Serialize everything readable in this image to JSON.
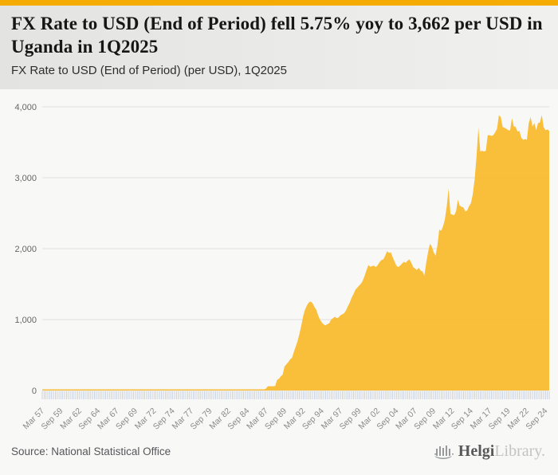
{
  "header": {
    "title": "FX Rate to USD (End of Period) fell 5.75% yoy to 3,662 per USD in Uganda in 1Q2025",
    "subtitle": "FX Rate to USD (End of Period) (per USD), 1Q2025"
  },
  "footer": {
    "source": "Source: National Statistical Office",
    "logo": {
      "primary": "Helgi",
      "secondary": "Library."
    }
  },
  "icons": {
    "logo_mark": "helgi-columns-icon"
  },
  "colors": {
    "accent_bar": "#F5AB00",
    "area_fill": "#F9BC34",
    "grid_line": "#E0E0DD",
    "tick_mark": "#BFC9DA",
    "x_label": "#8A8A8A",
    "y_label": "#666666",
    "logo_gray": "#97999C"
  },
  "chart_data": {
    "type": "area",
    "title": "FX Rate to USD (End of Period) (per USD), 1Q2025",
    "country": "Uganda",
    "unit": "UGX per USD",
    "frequency": "quarterly",
    "start_period": "Mar 1957",
    "end_period": "Mar 2025",
    "latest_value": 3662,
    "yoy_change_pct": -5.75,
    "legend": "none",
    "grid": "horizontal",
    "ylim": [
      0,
      4000
    ],
    "y_ticks": [
      0,
      1000,
      2000,
      3000,
      4000
    ],
    "y_tick_labels": [
      "0",
      "1,000",
      "2,000",
      "3,000",
      "4,000"
    ],
    "x_tick_every": 10,
    "x_tick_labels": [
      "Mar 57",
      "Sep 59",
      "Mar 62",
      "Sep 64",
      "Mar 67",
      "Sep 69",
      "Mar 72",
      "Sep 74",
      "Mar 77",
      "Sep 79",
      "Mar 82",
      "Sep 84",
      "Mar 87",
      "Sep 89",
      "Mar 92",
      "Sep 94",
      "Mar 97",
      "Sep 99",
      "Mar 02",
      "Sep 04",
      "Mar 07",
      "Sep 09",
      "Mar 12",
      "Sep 14",
      "Mar 17",
      "Sep 19",
      "Mar 22",
      "Sep 24"
    ],
    "values": [
      0.1,
      0.1,
      0.1,
      0.1,
      0.1,
      0.1,
      0.1,
      0.1,
      0.1,
      0.1,
      0.1,
      0.1,
      0.1,
      0.1,
      0.1,
      0.1,
      0.1,
      0.1,
      0.1,
      0.1,
      0.1,
      0.1,
      0.1,
      0.1,
      0.1,
      0.1,
      0.1,
      0.1,
      0.1,
      0.1,
      0.1,
      0.1,
      0.1,
      0.1,
      0.1,
      0.1,
      0.1,
      0.1,
      0.1,
      0.1,
      0.1,
      0.1,
      0.1,
      0.1,
      0.1,
      0.1,
      0.1,
      0.1,
      0.1,
      0.1,
      0.1,
      0.1,
      0.1,
      0.1,
      0.1,
      0.1,
      0.1,
      0.1,
      0.1,
      0.1,
      0.1,
      0.1,
      0.1,
      0.1,
      0.1,
      0.1,
      0.1,
      0.1,
      0.1,
      0.1,
      0.1,
      0.1,
      0.1,
      0.1,
      0.1,
      0.1,
      0.1,
      0.1,
      0.1,
      0.1,
      0.1,
      0.1,
      0.1,
      0.1,
      0.1,
      0.1,
      0.1,
      0.1,
      0.1,
      0.1,
      0.1,
      0.1,
      0.1,
      0.1,
      0.1,
      0.1,
      0.3,
      0.5,
      0.8,
      0.8,
      0.9,
      1,
      1,
      1,
      1.5,
      2,
      2.5,
      3,
      3.3,
      3.6,
      3.6,
      3.6,
      4,
      5,
      6,
      6,
      8,
      10,
      12,
      14,
      25,
      60,
      60,
      60,
      60,
      65,
      150,
      165,
      200,
      225,
      340,
      370,
      400,
      440,
      460,
      545,
      620,
      700,
      800,
      915,
      1050,
      1140,
      1200,
      1240,
      1255,
      1230,
      1180,
      1140,
      1060,
      1000,
      960,
      930,
      920,
      935,
      950,
      1000,
      1020,
      1040,
      1020,
      1030,
      1060,
      1075,
      1090,
      1130,
      1190,
      1240,
      1310,
      1360,
      1420,
      1450,
      1480,
      1505,
      1550,
      1620,
      1700,
      1770,
      1745,
      1755,
      1760,
      1740,
      1770,
      1810,
      1840,
      1850,
      1900,
      1965,
      1940,
      1950,
      1880,
      1820,
      1760,
      1740,
      1760,
      1790,
      1815,
      1800,
      1830,
      1850,
      1800,
      1740,
      1720,
      1700,
      1730,
      1690,
      1680,
      1620,
      1800,
      1950,
      2070,
      2030,
      1950,
      1900,
      2040,
      2270,
      2250,
      2310,
      2410,
      2590,
      2850,
      2490,
      2480,
      2470,
      2525,
      2690,
      2605,
      2590,
      2580,
      2525,
      2540,
      2600,
      2640,
      2770,
      2980,
      3300,
      3705,
      3370,
      3380,
      3370,
      3380,
      3600,
      3600,
      3590,
      3600,
      3640,
      3690,
      3880,
      3855,
      3715,
      3705,
      3690,
      3670,
      3665,
      3840,
      3725,
      3715,
      3650,
      3660,
      3565,
      3535,
      3545,
      3537,
      3765,
      3855,
      3720,
      3770,
      3670,
      3770,
      3780,
      3885,
      3710,
      3672,
      3680,
      3662
    ]
  }
}
